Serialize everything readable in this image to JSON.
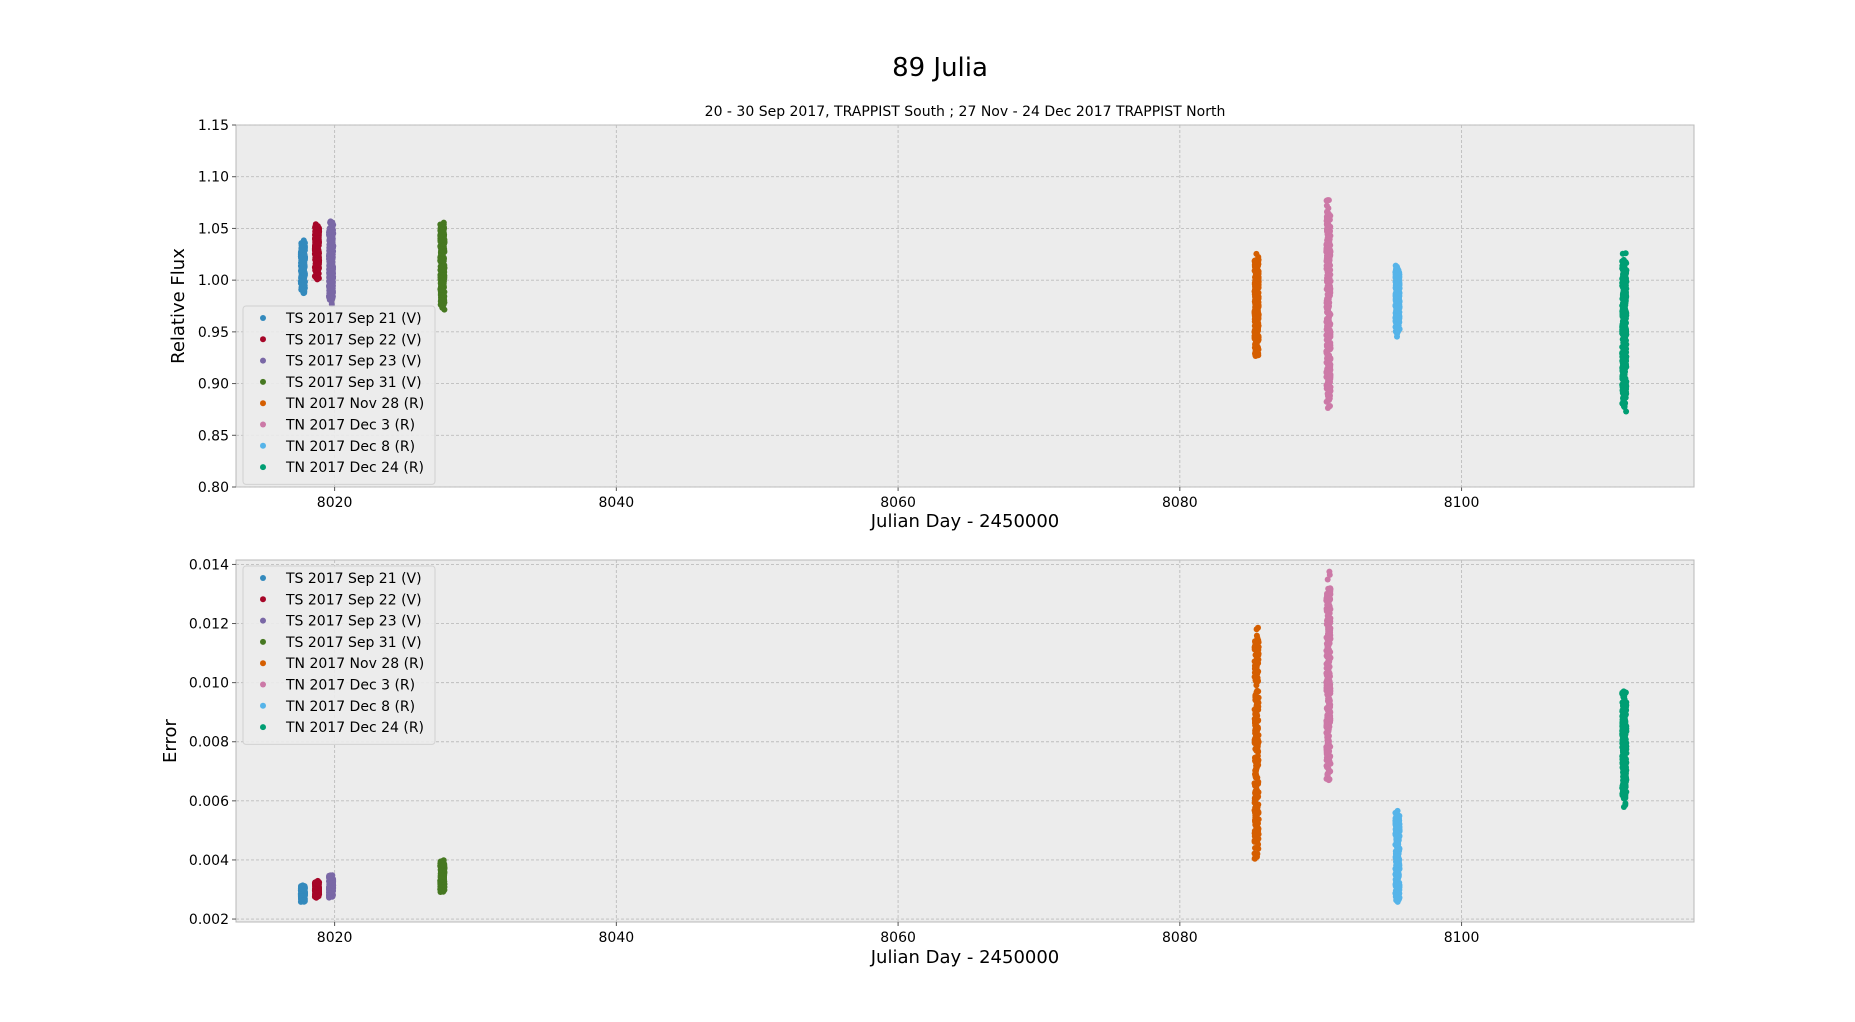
{
  "figure": {
    "suptitle": "89 Julia"
  },
  "chart_data": [
    {
      "type": "scatter",
      "title": "20 - 30 Sep 2017, TRAPPIST South ; 27 Nov - 24 Dec 2017 TRAPPIST North",
      "xlabel": "Julian Day  - 2450000",
      "ylabel": "Relative Flux",
      "xlim": [
        8013,
        8116.5
      ],
      "ylim": [
        0.8,
        1.15
      ],
      "xticks": [
        8020,
        8040,
        8060,
        8080,
        8100
      ],
      "yticks": [
        "0.80",
        "0.85",
        "0.90",
        "0.95",
        "1.00",
        "1.05",
        "1.10",
        "1.15"
      ],
      "grid": true,
      "legend_position": "center-left",
      "series": [
        {
          "name": "TS 2017 Sep 21  (V)",
          "color": "#348abd",
          "x_range": [
            8017.6,
            8017.9
          ],
          "y_range": [
            0.985,
            1.04
          ],
          "n": 240
        },
        {
          "name": "TS 2017 Sep 22  (V)",
          "color": "#a60628",
          "x_range": [
            8018.6,
            8018.9
          ],
          "y_range": [
            1.0,
            1.055
          ],
          "n": 240
        },
        {
          "name": "TS 2017 Sep 23  (V)",
          "color": "#7a68a6",
          "x_range": [
            8019.6,
            8019.9
          ],
          "y_range": [
            0.975,
            1.06
          ],
          "n": 260
        },
        {
          "name": "TS 2017 Sep 31  (V)",
          "color": "#467821",
          "x_range": [
            8027.5,
            8027.8
          ],
          "y_range": [
            0.97,
            1.06
          ],
          "n": 260
        },
        {
          "name": "TN 2017 Nov 28  (R)",
          "color": "#d55e00",
          "x_range": [
            8085.3,
            8085.6
          ],
          "y_range": [
            0.925,
            1.027
          ],
          "n": 280
        },
        {
          "name": "TN 2017 Dec 3  (R)",
          "color": "#cc79a7",
          "x_range": [
            8090.4,
            8090.7
          ],
          "y_range": [
            0.868,
            1.083
          ],
          "n": 320
        },
        {
          "name": "TN 2017 Dec 8  (R)",
          "color": "#56b4e9",
          "x_range": [
            8095.3,
            8095.6
          ],
          "y_range": [
            0.945,
            1.015
          ],
          "n": 260
        },
        {
          "name": "TN 2017 Dec 24  (R)",
          "color": "#009e73",
          "x_range": [
            8111.4,
            8111.7
          ],
          "y_range": [
            0.87,
            1.033
          ],
          "n": 300
        }
      ]
    },
    {
      "type": "scatter",
      "title": "",
      "xlabel": "Julian Day - 2450000",
      "ylabel": "Error",
      "xlim": [
        8013,
        8116.5
      ],
      "ylim": [
        0.0019,
        0.01415
      ],
      "xticks": [
        8020,
        8040,
        8060,
        8080,
        8100
      ],
      "yticks": [
        "0.002",
        "0.004",
        "0.006",
        "0.008",
        "0.010",
        "0.012",
        "0.014"
      ],
      "grid": true,
      "legend_position": "upper-left",
      "series": [
        {
          "name": "TS 2017 Sep 21  (V)",
          "color": "#348abd",
          "x_range": [
            8017.6,
            8017.9
          ],
          "y_range": [
            0.00255,
            0.00315
          ],
          "n": 200
        },
        {
          "name": "TS 2017 Sep 22  (V)",
          "color": "#a60628",
          "x_range": [
            8018.6,
            8018.9
          ],
          "y_range": [
            0.0027,
            0.0033
          ],
          "n": 200
        },
        {
          "name": "TS 2017 Sep 23  (V)",
          "color": "#7a68a6",
          "x_range": [
            8019.6,
            8019.9
          ],
          "y_range": [
            0.0027,
            0.0035
          ],
          "n": 200
        },
        {
          "name": "TS 2017 Sep 31  (V)",
          "color": "#467821",
          "x_range": [
            8027.5,
            8027.8
          ],
          "y_range": [
            0.0029,
            0.004
          ],
          "n": 220
        },
        {
          "name": "TN 2017 Nov 28  (R)",
          "color": "#d55e00",
          "x_range": [
            8085.3,
            8085.6
          ],
          "y_range": [
            0.0038,
            0.0121
          ],
          "n": 260
        },
        {
          "name": "TN 2017 Dec 3  (R)",
          "color": "#cc79a7",
          "x_range": [
            8090.4,
            8090.7
          ],
          "y_range": [
            0.0065,
            0.0138
          ],
          "n": 300
        },
        {
          "name": "TN 2017 Dec 8  (R)",
          "color": "#56b4e9",
          "x_range": [
            8095.3,
            8095.6
          ],
          "y_range": [
            0.0025,
            0.0057
          ],
          "n": 240
        },
        {
          "name": "TN 2017 Dec 24  (R)",
          "color": "#009e73",
          "x_range": [
            8111.4,
            8111.7
          ],
          "y_range": [
            0.0057,
            0.0098
          ],
          "n": 260
        }
      ]
    }
  ]
}
